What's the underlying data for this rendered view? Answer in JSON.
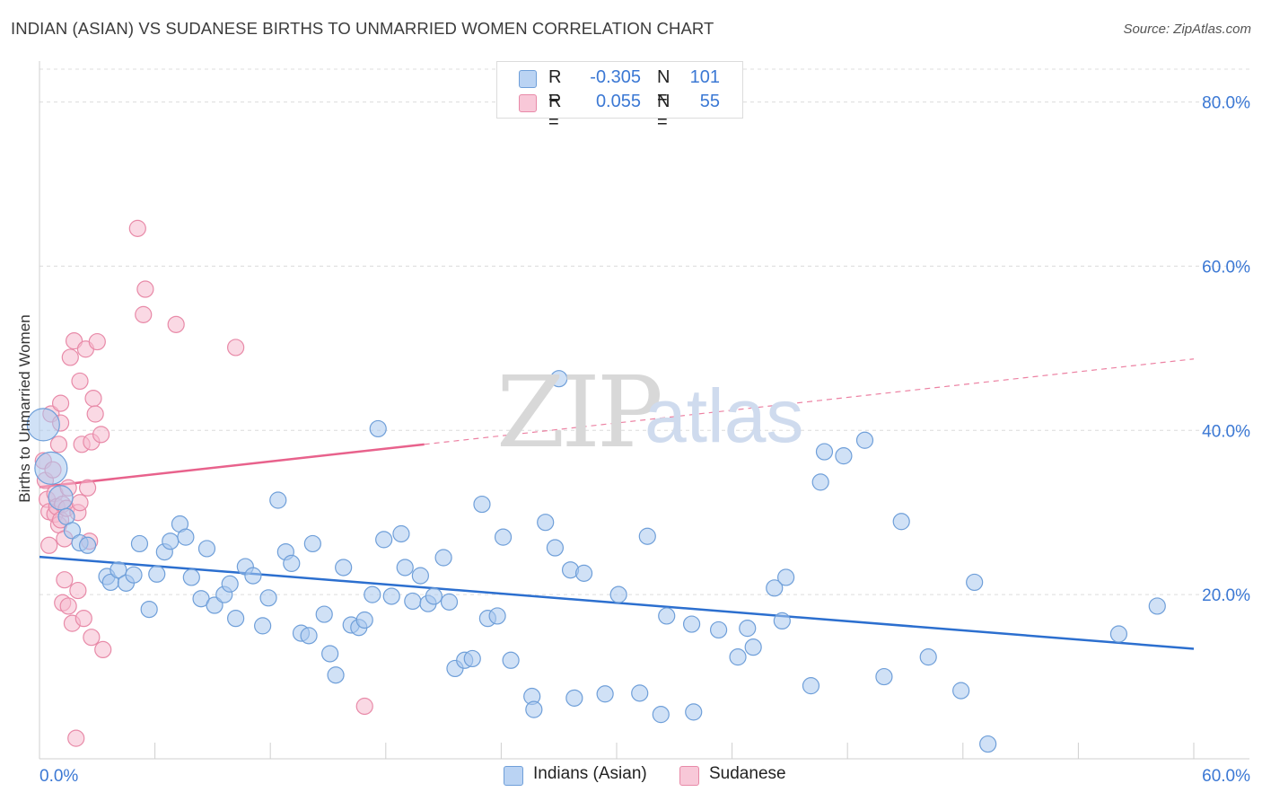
{
  "title": "INDIAN (ASIAN) VS SUDANESE BIRTHS TO UNMARRIED WOMEN CORRELATION CHART",
  "source": "Source: ZipAtlas.com",
  "watermark": {
    "zip": "ZIP",
    "atlas": "atlas"
  },
  "legend": {
    "series1": {
      "r_label": "R =",
      "r_value": "-0.305",
      "n_label": "N =",
      "n_value": "101"
    },
    "series2": {
      "r_label": "R =",
      "r_value": "0.055",
      "n_label": "N =",
      "n_value": "55"
    }
  },
  "bottom_legend": {
    "series1": "Indians (Asian)",
    "series2": "Sudanese"
  },
  "colors": {
    "blue_fill": "#aac8ef",
    "blue_stroke": "#6f9fd9",
    "blue_line": "#2c6fcf",
    "pink_fill": "#f6b9cd",
    "pink_stroke": "#e88aa8",
    "pink_line": "#e8628c",
    "tick_text": "#3b78d4",
    "grid": "#dcdcdc"
  },
  "chart_data": {
    "type": "scatter",
    "title": "INDIAN (ASIAN) VS SUDANESE BIRTHS TO UNMARRIED WOMEN CORRELATION CHART",
    "xlabel": "",
    "ylabel": "Births to Unmarried Women",
    "xlim": [
      0,
      60
    ],
    "ylim": [
      0,
      84
    ],
    "x_tick_labels": [
      "0.0%",
      "60.0%"
    ],
    "y_ticks": [
      20,
      40,
      60,
      80
    ],
    "y_tick_labels": [
      "20.0%",
      "40.0%",
      "60.0%",
      "80.0%"
    ],
    "series": [
      {
        "name": "Indians (Asian)",
        "r": -0.305,
        "n": 101,
        "trend": {
          "x": [
            0,
            60
          ],
          "y": [
            24.6,
            13.4
          ],
          "dashed_from": null
        },
        "points": [
          [
            0.2,
            40.7,
            2
          ],
          [
            0.6,
            35.4,
            2
          ],
          [
            1.1,
            31.8,
            1.5
          ],
          [
            1.4,
            29.5,
            1
          ],
          [
            1.7,
            27.8,
            1
          ],
          [
            2.1,
            26.3,
            1
          ],
          [
            2.5,
            26.0,
            1
          ],
          [
            3.5,
            22.2,
            1
          ],
          [
            3.7,
            21.5,
            1
          ],
          [
            4.1,
            23.0,
            1
          ],
          [
            4.5,
            21.4,
            1
          ],
          [
            4.9,
            22.4,
            1
          ],
          [
            5.2,
            26.2,
            1
          ],
          [
            5.7,
            18.2,
            1
          ],
          [
            6.1,
            22.5,
            1
          ],
          [
            6.5,
            25.2,
            1
          ],
          [
            6.8,
            26.5,
            1
          ],
          [
            7.3,
            28.6,
            1
          ],
          [
            7.6,
            27.0,
            1
          ],
          [
            7.9,
            22.1,
            1
          ],
          [
            8.4,
            19.5,
            1
          ],
          [
            8.7,
            25.6,
            1
          ],
          [
            9.1,
            18.7,
            1
          ],
          [
            9.6,
            20.0,
            1
          ],
          [
            9.9,
            21.3,
            1
          ],
          [
            10.2,
            17.1,
            1
          ],
          [
            10.7,
            23.4,
            1
          ],
          [
            11.1,
            22.3,
            1
          ],
          [
            11.6,
            16.2,
            1
          ],
          [
            11.9,
            19.6,
            1
          ],
          [
            12.4,
            31.5,
            1
          ],
          [
            12.8,
            25.2,
            1
          ],
          [
            13.1,
            23.8,
            1
          ],
          [
            13.6,
            15.3,
            1
          ],
          [
            14.0,
            15.0,
            1
          ],
          [
            14.2,
            26.2,
            1
          ],
          [
            14.8,
            17.6,
            1
          ],
          [
            15.1,
            12.8,
            1
          ],
          [
            15.4,
            10.2,
            1
          ],
          [
            15.8,
            23.3,
            1
          ],
          [
            16.2,
            16.3,
            1
          ],
          [
            16.6,
            16.0,
            1
          ],
          [
            16.9,
            16.9,
            1
          ],
          [
            17.3,
            20.0,
            1
          ],
          [
            17.6,
            40.2,
            1
          ],
          [
            17.9,
            26.7,
            1
          ],
          [
            18.3,
            19.8,
            1
          ],
          [
            18.8,
            27.4,
            1
          ],
          [
            19.0,
            23.3,
            1
          ],
          [
            19.4,
            19.2,
            1
          ],
          [
            19.8,
            22.3,
            1
          ],
          [
            20.2,
            18.9,
            1
          ],
          [
            20.5,
            19.8,
            1
          ],
          [
            21.0,
            24.5,
            1
          ],
          [
            21.3,
            19.1,
            1
          ],
          [
            21.6,
            11.0,
            1
          ],
          [
            22.1,
            12.0,
            1
          ],
          [
            22.5,
            12.2,
            1
          ],
          [
            23.0,
            31.0,
            1
          ],
          [
            23.3,
            17.1,
            1
          ],
          [
            23.8,
            17.4,
            1
          ],
          [
            24.1,
            27.0,
            1
          ],
          [
            24.5,
            12.0,
            1
          ],
          [
            25.6,
            7.6,
            1
          ],
          [
            25.7,
            6.0,
            1
          ],
          [
            26.3,
            28.8,
            1
          ],
          [
            26.8,
            25.7,
            1
          ],
          [
            27.0,
            46.3,
            1
          ],
          [
            27.6,
            23.0,
            1
          ],
          [
            27.8,
            7.4,
            1
          ],
          [
            28.3,
            22.6,
            1
          ],
          [
            29.4,
            7.9,
            1
          ],
          [
            30.1,
            20.0,
            1
          ],
          [
            31.2,
            8.0,
            1
          ],
          [
            31.6,
            27.1,
            1
          ],
          [
            32.3,
            5.4,
            1
          ],
          [
            32.6,
            17.4,
            1
          ],
          [
            33.9,
            16.4,
            1
          ],
          [
            34.0,
            5.7,
            1
          ],
          [
            35.3,
            15.7,
            1
          ],
          [
            36.3,
            12.4,
            1
          ],
          [
            36.8,
            15.9,
            1
          ],
          [
            37.1,
            13.6,
            1
          ],
          [
            38.2,
            20.8,
            1
          ],
          [
            38.6,
            16.8,
            1
          ],
          [
            38.8,
            22.1,
            1
          ],
          [
            40.1,
            8.9,
            1
          ],
          [
            40.6,
            33.7,
            1
          ],
          [
            40.8,
            37.4,
            1
          ],
          [
            41.8,
            36.9,
            1
          ],
          [
            42.9,
            38.8,
            1
          ],
          [
            43.9,
            10.0,
            1
          ],
          [
            44.8,
            28.9,
            1
          ],
          [
            46.2,
            12.4,
            1
          ],
          [
            47.9,
            8.3,
            1
          ],
          [
            48.6,
            21.5,
            1
          ],
          [
            49.3,
            1.8,
            1
          ],
          [
            56.1,
            15.2,
            1
          ],
          [
            58.1,
            18.6,
            1
          ]
        ]
      },
      {
        "name": "Sudanese",
        "r": 0.055,
        "n": 55,
        "trend": {
          "x": [
            0,
            60
          ],
          "y": [
            33.1,
            48.7
          ],
          "dashed_from": 20.0
        },
        "points": [
          [
            0.2,
            36.3,
            1
          ],
          [
            0.3,
            33.9,
            1
          ],
          [
            0.4,
            31.6,
            1
          ],
          [
            0.5,
            30.1,
            1
          ],
          [
            0.5,
            26.0,
            1
          ],
          [
            0.6,
            42.0,
            1
          ],
          [
            0.7,
            35.2,
            1
          ],
          [
            0.8,
            32.3,
            1
          ],
          [
            0.8,
            29.8,
            1
          ],
          [
            0.9,
            30.7,
            1
          ],
          [
            1.0,
            28.5,
            1
          ],
          [
            1.0,
            38.3,
            1
          ],
          [
            1.1,
            40.9,
            1
          ],
          [
            1.1,
            43.3,
            1
          ],
          [
            1.1,
            29.1,
            1
          ],
          [
            1.2,
            31.0,
            1
          ],
          [
            1.2,
            19.0,
            1
          ],
          [
            1.3,
            21.8,
            1
          ],
          [
            1.3,
            26.8,
            1
          ],
          [
            1.4,
            30.5,
            1
          ],
          [
            1.5,
            18.6,
            1
          ],
          [
            1.5,
            33.0,
            1
          ],
          [
            1.6,
            48.9,
            1
          ],
          [
            1.7,
            16.5,
            1
          ],
          [
            1.8,
            50.9,
            1
          ],
          [
            1.9,
            2.5,
            1
          ],
          [
            2.0,
            20.5,
            1
          ],
          [
            2.0,
            30.0,
            1
          ],
          [
            2.1,
            31.2,
            1
          ],
          [
            2.1,
            46.0,
            1
          ],
          [
            2.2,
            38.3,
            1
          ],
          [
            2.3,
            17.1,
            1
          ],
          [
            2.4,
            49.9,
            1
          ],
          [
            2.5,
            33.0,
            1
          ],
          [
            2.6,
            26.5,
            1
          ],
          [
            2.7,
            38.6,
            1
          ],
          [
            2.7,
            14.8,
            1
          ],
          [
            2.8,
            43.9,
            1
          ],
          [
            2.9,
            42.0,
            1
          ],
          [
            3.0,
            50.8,
            1
          ],
          [
            3.2,
            39.5,
            1
          ],
          [
            3.3,
            13.3,
            1
          ],
          [
            5.1,
            64.6,
            1
          ],
          [
            5.4,
            54.1,
            1
          ],
          [
            5.5,
            57.2,
            1
          ],
          [
            7.1,
            52.9,
            1
          ],
          [
            10.2,
            50.1,
            1
          ],
          [
            16.9,
            6.4,
            1
          ]
        ]
      }
    ]
  }
}
